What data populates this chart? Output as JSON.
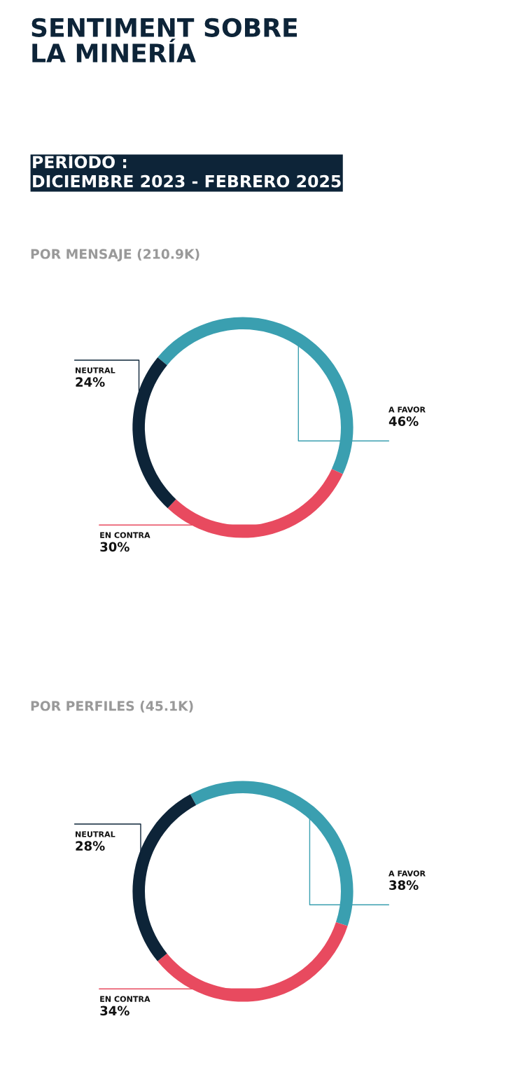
{
  "chart_data": [
    {
      "type": "other",
      "title": "SENTIMENT SOBRE\nLA MINERÍA",
      "subtitle": "PERÍODO :\nDICIEMBRE 2023 - FEBRERO 2025"
    },
    {
      "type": "donut",
      "title": "POR MENSAJE (210.9K)",
      "categories": [
        "A FAVOR",
        "EN CONTRA",
        "NEUTRAL"
      ],
      "values": [
        46,
        30,
        24
      ],
      "colors": [
        "#3a9fb0",
        "#e84a5f",
        "#0d2438"
      ],
      "value_labels": [
        "46%",
        "30%",
        "24%"
      ]
    },
    {
      "type": "donut",
      "title": "POR PERFILES (45.1K)",
      "categories": [
        "A FAVOR",
        "EN CONTRA",
        "NEUTRAL"
      ],
      "values": [
        38,
        34,
        28
      ],
      "colors": [
        "#3a9fb0",
        "#e84a5f",
        "#0d2438"
      ],
      "value_labels": [
        "38%",
        "34%",
        "28%"
      ]
    }
  ]
}
